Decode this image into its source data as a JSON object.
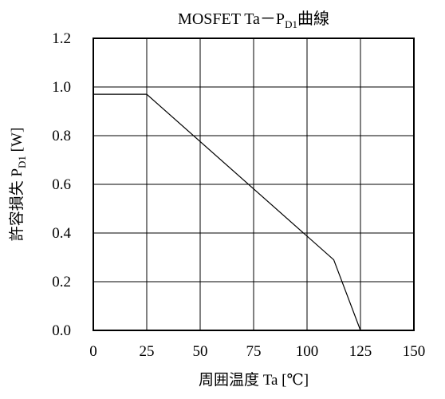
{
  "chart_data": {
    "type": "line",
    "title": {
      "main": "MOSFET Ta－P",
      "sub": "D1",
      "suffix": "曲線"
    },
    "xlabel": "周囲温度 Ta [℃]",
    "ylabel": {
      "main": "許容損失 P",
      "sub": "D1",
      "suffix": " [W]"
    },
    "xlim": [
      0,
      150
    ],
    "ylim": [
      0,
      1.2
    ],
    "x_ticks": [
      "0",
      "25",
      "50",
      "75",
      "100",
      "125",
      "150"
    ],
    "y_ticks": [
      "0.0",
      "0.2",
      "0.4",
      "0.6",
      "0.8",
      "1.0",
      "1.2"
    ],
    "grid": true,
    "series": [
      {
        "x": [
          0,
          25,
          112.5,
          125
        ],
        "y": [
          0.97,
          0.97,
          0.29,
          0
        ]
      }
    ]
  }
}
